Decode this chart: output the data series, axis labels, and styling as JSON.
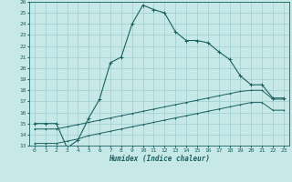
{
  "xlabel": "Humidex (Indice chaleur)",
  "ylabel": "",
  "bg_color": "#c6e8e6",
  "grid_color": "#9ecece",
  "line_color": "#1a6060",
  "xlim": [
    -0.5,
    23.5
  ],
  "ylim": [
    13,
    26
  ],
  "xticks": [
    0,
    1,
    2,
    3,
    4,
    5,
    6,
    7,
    8,
    9,
    10,
    11,
    12,
    13,
    14,
    15,
    16,
    17,
    18,
    19,
    20,
    21,
    22,
    23
  ],
  "yticks": [
    13,
    14,
    15,
    16,
    17,
    18,
    19,
    20,
    21,
    22,
    23,
    24,
    25,
    26
  ],
  "series1_x": [
    0,
    1,
    2,
    3,
    4,
    5,
    6,
    7,
    8,
    9,
    10,
    11,
    12,
    13,
    14,
    15,
    16,
    17,
    18,
    19,
    20,
    21,
    22,
    23
  ],
  "series1_y": [
    15.0,
    15.0,
    15.0,
    12.8,
    13.5,
    15.5,
    17.2,
    20.5,
    21.0,
    24.0,
    25.7,
    25.3,
    25.0,
    23.3,
    22.5,
    22.5,
    22.3,
    21.5,
    20.8,
    19.3,
    18.5,
    18.5,
    17.3,
    17.3
  ],
  "series2_x": [
    0,
    1,
    2,
    3,
    4,
    5,
    6,
    7,
    8,
    9,
    10,
    11,
    12,
    13,
    14,
    15,
    16,
    17,
    18,
    19,
    20,
    21,
    22,
    23
  ],
  "series2_y": [
    14.5,
    14.5,
    14.5,
    14.7,
    14.9,
    15.1,
    15.3,
    15.5,
    15.7,
    15.9,
    16.1,
    16.3,
    16.5,
    16.7,
    16.9,
    17.1,
    17.3,
    17.5,
    17.7,
    17.9,
    18.0,
    18.0,
    17.2,
    17.2
  ],
  "series3_x": [
    0,
    1,
    2,
    3,
    4,
    5,
    6,
    7,
    8,
    9,
    10,
    11,
    12,
    13,
    14,
    15,
    16,
    17,
    18,
    19,
    20,
    21,
    22,
    23
  ],
  "series3_y": [
    13.2,
    13.2,
    13.2,
    13.4,
    13.6,
    13.9,
    14.1,
    14.3,
    14.5,
    14.7,
    14.9,
    15.1,
    15.3,
    15.5,
    15.7,
    15.9,
    16.1,
    16.3,
    16.5,
    16.7,
    16.9,
    16.9,
    16.2,
    16.2
  ],
  "xlabel_fontsize": 5.5,
  "tick_fontsize": 4.5
}
